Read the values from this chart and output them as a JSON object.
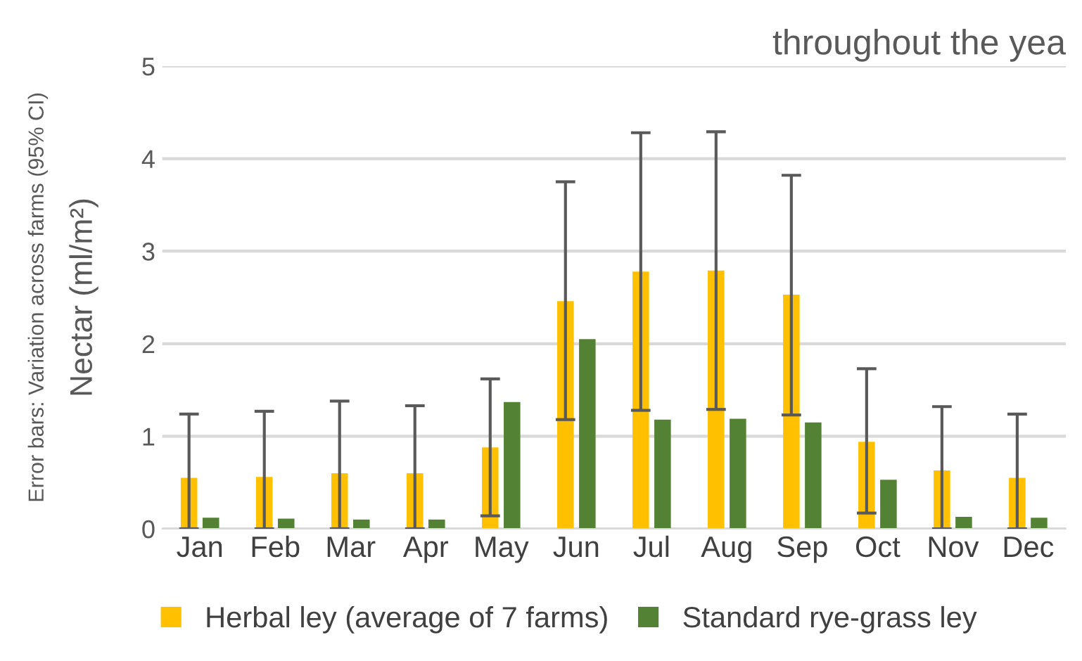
{
  "chart_data": {
    "type": "bar",
    "title": "throughout the yea",
    "ylabel": "Nectar (ml/m²)",
    "annotations": [
      "Error bars: Variation across farms (95% CI)"
    ],
    "categories": [
      "Jan",
      "Feb",
      "Mar",
      "Apr",
      "May",
      "Jun",
      "Jul",
      "Aug",
      "Sep",
      "Oct",
      "Nov",
      "Dec"
    ],
    "series": [
      {
        "name": "Herbal ley (average of 7 farms)",
        "color": "#ffc000",
        "values": [
          0.55,
          0.56,
          0.6,
          0.6,
          0.88,
          2.46,
          2.78,
          2.79,
          2.53,
          0.94,
          0.63,
          0.55
        ],
        "errors": [
          [
            0,
            1.24
          ],
          [
            0,
            1.27
          ],
          [
            0,
            1.38
          ],
          [
            0,
            1.33
          ],
          [
            0.14,
            1.62
          ],
          [
            1.18,
            3.75
          ],
          [
            1.28,
            4.28
          ],
          [
            1.29,
            4.29
          ],
          [
            1.23,
            3.82
          ],
          [
            0.17,
            1.73
          ],
          [
            0,
            1.32
          ],
          [
            0,
            1.24
          ]
        ]
      },
      {
        "name": "Standard rye-grass ley",
        "color": "#548235",
        "values": [
          0.12,
          0.11,
          0.1,
          0.1,
          1.37,
          2.05,
          1.18,
          1.19,
          1.15,
          0.53,
          0.13,
          0.12
        ]
      }
    ],
    "ylim": [
      0,
      5
    ],
    "yticks": [
      0,
      1,
      2,
      3,
      4,
      5
    ],
    "grid": "y",
    "legend": "bottom"
  }
}
